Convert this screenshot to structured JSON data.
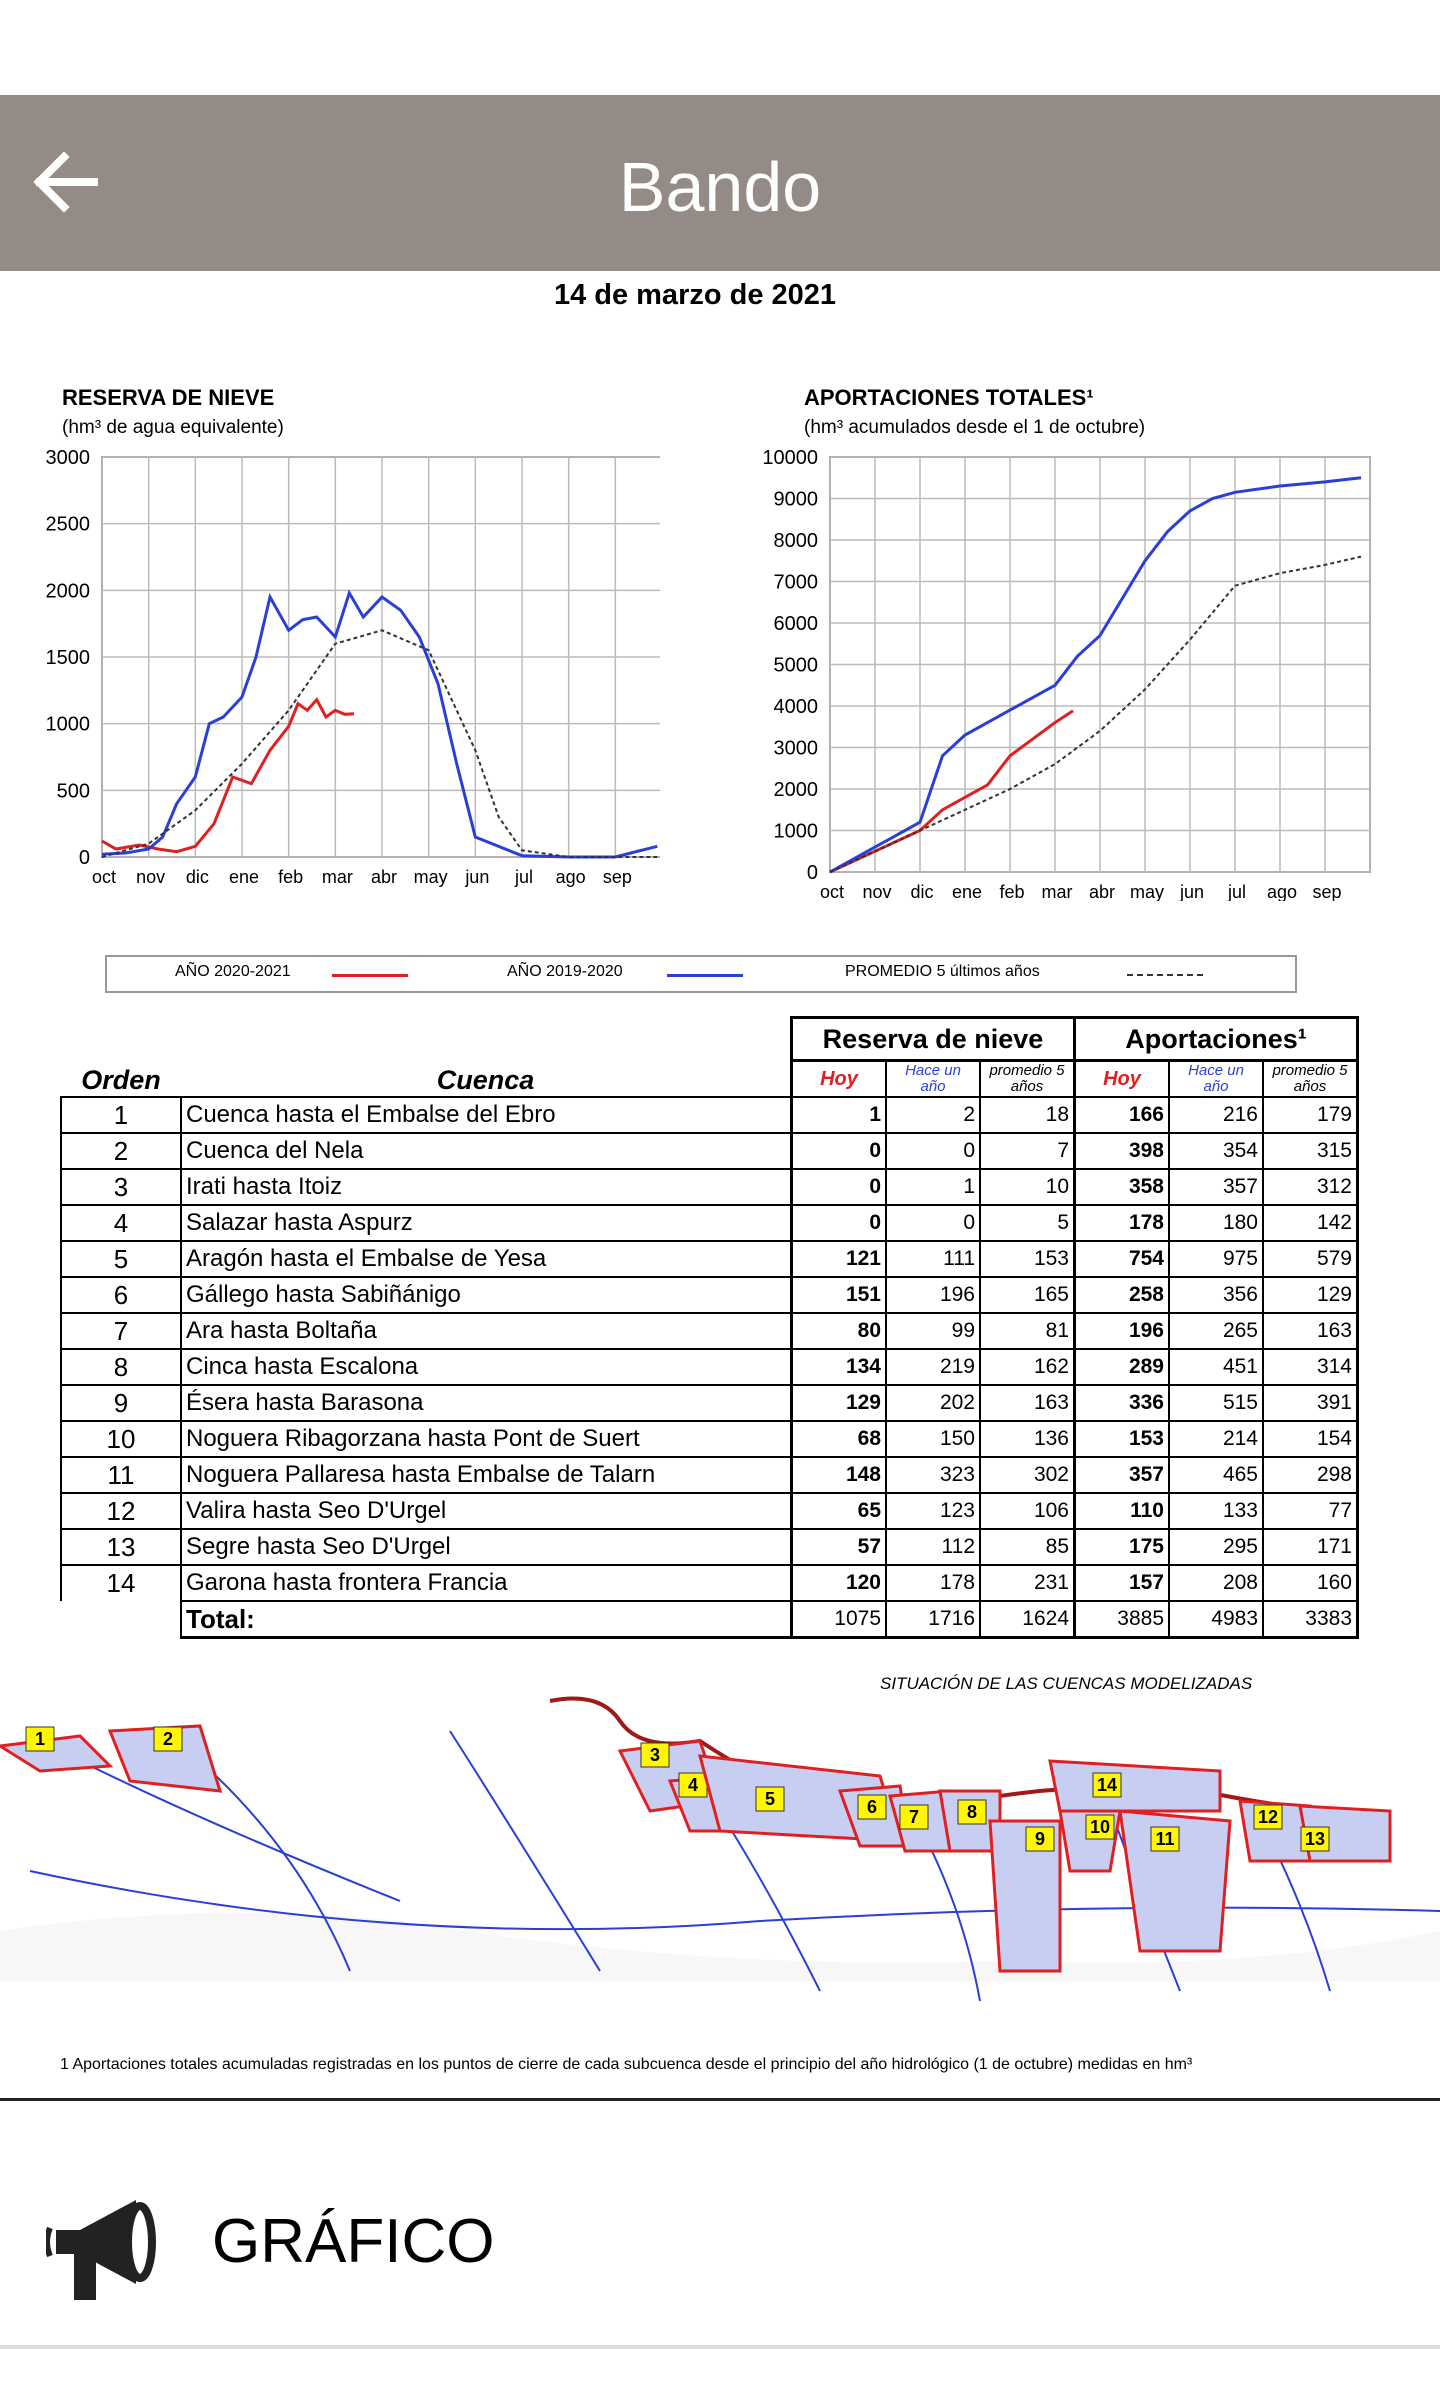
{
  "app_bar": {
    "title": "Bando",
    "back_icon": "arrow-left-icon"
  },
  "document": {
    "date": "14 de marzo de 2021",
    "chart_snow_title": "RESERVA DE NIEVE",
    "chart_snow_subtitle": "(hm³ de agua equivalente)",
    "chart_flow_title": "APORTACIONES TOTALES¹",
    "chart_flow_subtitle": "(hm³ acumulados desde el 1 de octubre)",
    "legend": {
      "a": "AÑO 2020-2021",
      "b": "AÑO 2019-2020",
      "c": "PROMEDIO 5 últimos años"
    },
    "table": {
      "orden_h": "Orden",
      "cuenca_h": "Cuenca",
      "reserva_h": "Reserva de nieve",
      "aport_h": "Aportaciones¹",
      "hoy": "Hoy",
      "hace": "Hace un año",
      "prom": "promedio 5 años",
      "rows": [
        [
          "1",
          "Cuenca hasta el Embalse del Ebro",
          "1",
          "2",
          "18",
          "166",
          "216",
          "179"
        ],
        [
          "2",
          "Cuenca del Nela",
          "0",
          "0",
          "7",
          "398",
          "354",
          "315"
        ],
        [
          "3",
          "Irati hasta Itoiz",
          "0",
          "1",
          "10",
          "358",
          "357",
          "312"
        ],
        [
          "4",
          "Salazar hasta Aspurz",
          "0",
          "0",
          "5",
          "178",
          "180",
          "142"
        ],
        [
          "5",
          "Aragón hasta el  Embalse de Yesa",
          "121",
          "111",
          "153",
          "754",
          "975",
          "579"
        ],
        [
          "6",
          "Gállego hasta Sabiñánigo",
          "151",
          "196",
          "165",
          "258",
          "356",
          "129"
        ],
        [
          "7",
          "Ara hasta Boltaña",
          "80",
          "99",
          "81",
          "196",
          "265",
          "163"
        ],
        [
          "8",
          "Cinca hasta Escalona",
          "134",
          "219",
          "162",
          "289",
          "451",
          "314"
        ],
        [
          "9",
          "Ésera hasta Barasona",
          "129",
          "202",
          "163",
          "336",
          "515",
          "391"
        ],
        [
          "10",
          "Noguera Ribagorzana hasta Pont de Suert",
          "68",
          "150",
          "136",
          "153",
          "214",
          "154"
        ],
        [
          "11",
          "Noguera Pallaresa hasta Embalse de Talarn",
          "148",
          "323",
          "302",
          "357",
          "465",
          "298"
        ],
        [
          "12",
          "Valira hasta Seo D'Urgel",
          "65",
          "123",
          "106",
          "110",
          "133",
          "77"
        ],
        [
          "13",
          "Segre hasta Seo D'Urgel",
          "57",
          "112",
          "85",
          "175",
          "295",
          "171"
        ],
        [
          "14",
          "Garona hasta frontera Francia",
          "120",
          "178",
          "231",
          "157",
          "208",
          "160"
        ]
      ],
      "total": [
        "Total:",
        "1075",
        "1716",
        "1624",
        "3885",
        "4983",
        "3383"
      ]
    },
    "map_title": "SITUACIÓN DE LAS CUENCAS MODELIZADAS",
    "footnote": "1 Aportaciones totales acumuladas  registradas en los puntos de cierre    de cada subcuenca desde el principio del año hidrológico (1 de octubre) medidas en hm³"
  },
  "grafico": {
    "label": "GRÁFICO",
    "icon": "megaphone-icon"
  },
  "colors": {
    "appbar": "#948b87",
    "red": "#e02020",
    "blue": "#2a3fd8",
    "avg": "#333333"
  },
  "chart_data": [
    {
      "type": "line",
      "title": "RESERVA DE NIEVE",
      "ylabel": "(hm³ de agua equivalente)",
      "categories": [
        "oct",
        "nov",
        "dic",
        "ene",
        "feb",
        "mar",
        "abr",
        "may",
        "jun",
        "jul",
        "ago",
        "sep"
      ],
      "ylim": [
        0,
        3000
      ],
      "series": [
        {
          "name": "AÑO 2020-2021",
          "x": [
            0,
            0.3,
            0.8,
            1.2,
            1.6,
            2.0,
            2.4,
            2.8,
            3.2,
            3.6,
            4.0,
            4.2,
            4.4,
            4.6,
            4.8,
            5.0,
            5.2,
            5.4
          ],
          "values": [
            120,
            60,
            90,
            60,
            40,
            80,
            250,
            600,
            550,
            800,
            980,
            1150,
            1100,
            1180,
            1050,
            1100,
            1070,
            1075
          ]
        },
        {
          "name": "AÑO 2019-2020",
          "x": [
            0,
            0.5,
            1.0,
            1.3,
            1.6,
            2.0,
            2.3,
            2.6,
            3.0,
            3.3,
            3.6,
            4.0,
            4.3,
            4.6,
            5.0,
            5.3,
            5.6,
            6.0,
            6.4,
            6.8,
            7.2,
            7.6,
            8.0,
            9.0,
            10.0,
            11.0,
            11.9
          ],
          "values": [
            20,
            30,
            60,
            150,
            400,
            600,
            1000,
            1050,
            1200,
            1500,
            1950,
            1700,
            1780,
            1800,
            1650,
            1980,
            1800,
            1950,
            1850,
            1650,
            1300,
            700,
            150,
            10,
            0,
            0,
            80
          ]
        },
        {
          "name": "PROMEDIO 5 últimos años",
          "x": [
            0,
            1,
            2,
            3,
            4,
            5,
            6,
            7,
            8,
            8.5,
            9,
            10,
            11,
            11.9
          ],
          "values": [
            0,
            100,
            350,
            700,
            1100,
            1600,
            1700,
            1550,
            800,
            300,
            50,
            0,
            0,
            0
          ]
        }
      ]
    },
    {
      "type": "line",
      "title": "APORTACIONES TOTALES¹",
      "ylabel": "(hm³ acumulados desde el 1 de octubre)",
      "categories": [
        "oct",
        "nov",
        "dic",
        "ene",
        "feb",
        "mar",
        "abr",
        "may",
        "jun",
        "jul",
        "ago",
        "sep"
      ],
      "ylim": [
        0,
        10000
      ],
      "series": [
        {
          "name": "AÑO 2020-2021",
          "x": [
            0,
            1,
            2,
            2.5,
            3,
            3.5,
            4,
            4.5,
            5,
            5.4
          ],
          "values": [
            0,
            500,
            1000,
            1500,
            1800,
            2100,
            2800,
            3200,
            3600,
            3885
          ]
        },
        {
          "name": "AÑO 2019-2020",
          "x": [
            0,
            1,
            2,
            2.5,
            3,
            3.5,
            4,
            4.5,
            5,
            5.5,
            6,
            6.5,
            7,
            7.5,
            8,
            8.5,
            9,
            10,
            11,
            11.8
          ],
          "values": [
            0,
            600,
            1200,
            2800,
            3300,
            3600,
            3900,
            4200,
            4500,
            5200,
            5700,
            6600,
            7500,
            8200,
            8700,
            9000,
            9150,
            9300,
            9400,
            9500
          ]
        },
        {
          "name": "PROMEDIO 5 últimos años",
          "x": [
            0,
            1,
            2,
            3,
            4,
            5,
            6,
            7,
            8,
            9,
            10,
            11,
            11.8
          ],
          "values": [
            0,
            500,
            1000,
            1500,
            2000,
            2600,
            3400,
            4400,
            5600,
            6900,
            7200,
            7400,
            7600
          ]
        }
      ]
    }
  ]
}
